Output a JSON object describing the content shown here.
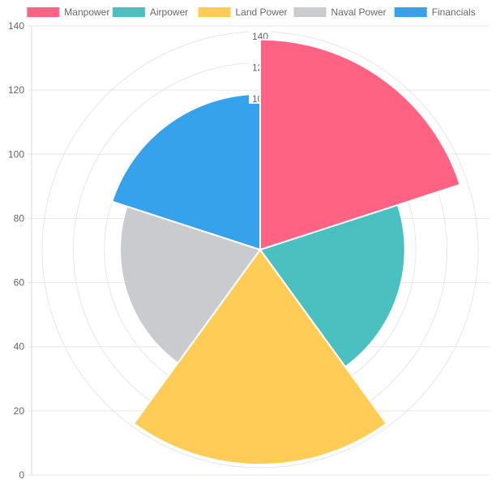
{
  "chart_data": {
    "type": "polarArea",
    "categories": [
      "Manpower",
      "Airpower",
      "Land Power",
      "Naval Power",
      "Financials"
    ],
    "values": [
      135,
      93,
      138,
      90,
      100
    ],
    "colors": [
      "#ff6384",
      "#4bc0c0",
      "#ffcd56",
      "#c9cbcf",
      "#36a2eb"
    ],
    "legend": {
      "position": "top",
      "labels": [
        "Manpower",
        "Airpower",
        "Land Power",
        "Naval Power",
        "Financials"
      ]
    },
    "y_axis": {
      "min": 0,
      "max": 140,
      "step": 20,
      "ticks": [
        "0",
        "20",
        "40",
        "60",
        "80",
        "100",
        "120",
        "140"
      ]
    },
    "radial_axis": {
      "min": 0,
      "max": 140,
      "step": 20,
      "visible_ticks": [
        "140",
        "120",
        "100"
      ]
    },
    "grid": true
  }
}
